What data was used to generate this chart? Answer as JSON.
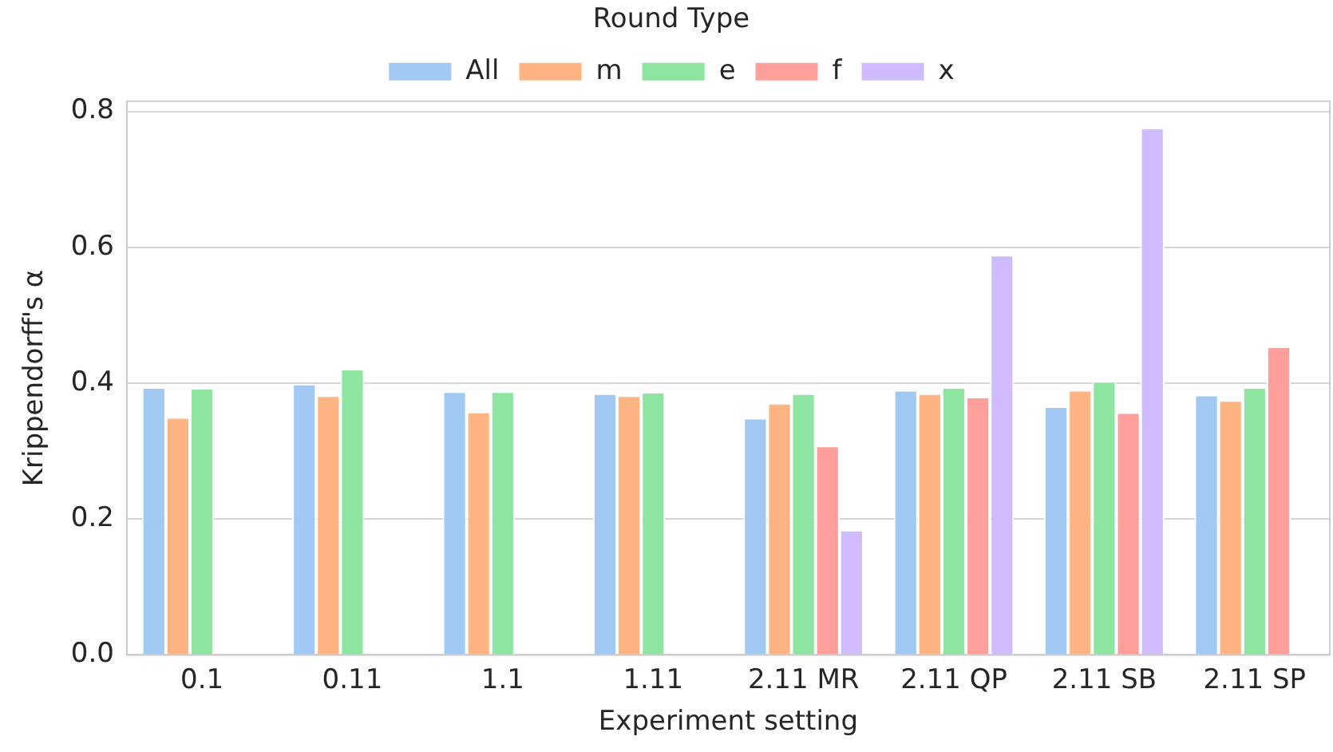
{
  "chart_data": {
    "type": "bar",
    "xlabel": "Experiment setting",
    "ylabel": "Krippendorff's α",
    "legend_title": "Round Type",
    "legend": "top",
    "categories": [
      "0.1",
      "0.11",
      "1.1",
      "1.11",
      "2.11 MR",
      "2.11 QP",
      "2.11 SB",
      "2.11 SP"
    ],
    "series": [
      {
        "name": "All",
        "color": "#a1c9f4",
        "values": [
          0.394,
          0.399,
          0.388,
          0.385,
          0.349,
          0.39,
          0.366,
          0.383
        ]
      },
      {
        "name": "m",
        "color": "#ffb482",
        "values": [
          0.35,
          0.382,
          0.358,
          0.382,
          0.371,
          0.385,
          0.39,
          0.375
        ]
      },
      {
        "name": "e",
        "color": "#8de5a1",
        "values": [
          0.393,
          0.421,
          0.388,
          0.387,
          0.385,
          0.394,
          0.403,
          0.394
        ]
      },
      {
        "name": "f",
        "color": "#ff9f9b",
        "values": [
          null,
          null,
          null,
          null,
          0.308,
          0.38,
          0.357,
          0.454
        ]
      },
      {
        "name": "x",
        "color": "#d0bbff",
        "values": [
          null,
          null,
          null,
          null,
          0.184,
          0.589,
          0.776,
          null
        ]
      }
    ],
    "ylim": [
      0,
      0.815
    ],
    "yticks": [
      {
        "value": 0,
        "label": "0.0"
      },
      {
        "value": 0.2,
        "label": "0.2"
      },
      {
        "value": 0.4,
        "label": "0.4"
      },
      {
        "value": 0.6,
        "label": "0.6"
      },
      {
        "value": 0.8,
        "label": "0.8"
      }
    ],
    "grid": "y"
  }
}
